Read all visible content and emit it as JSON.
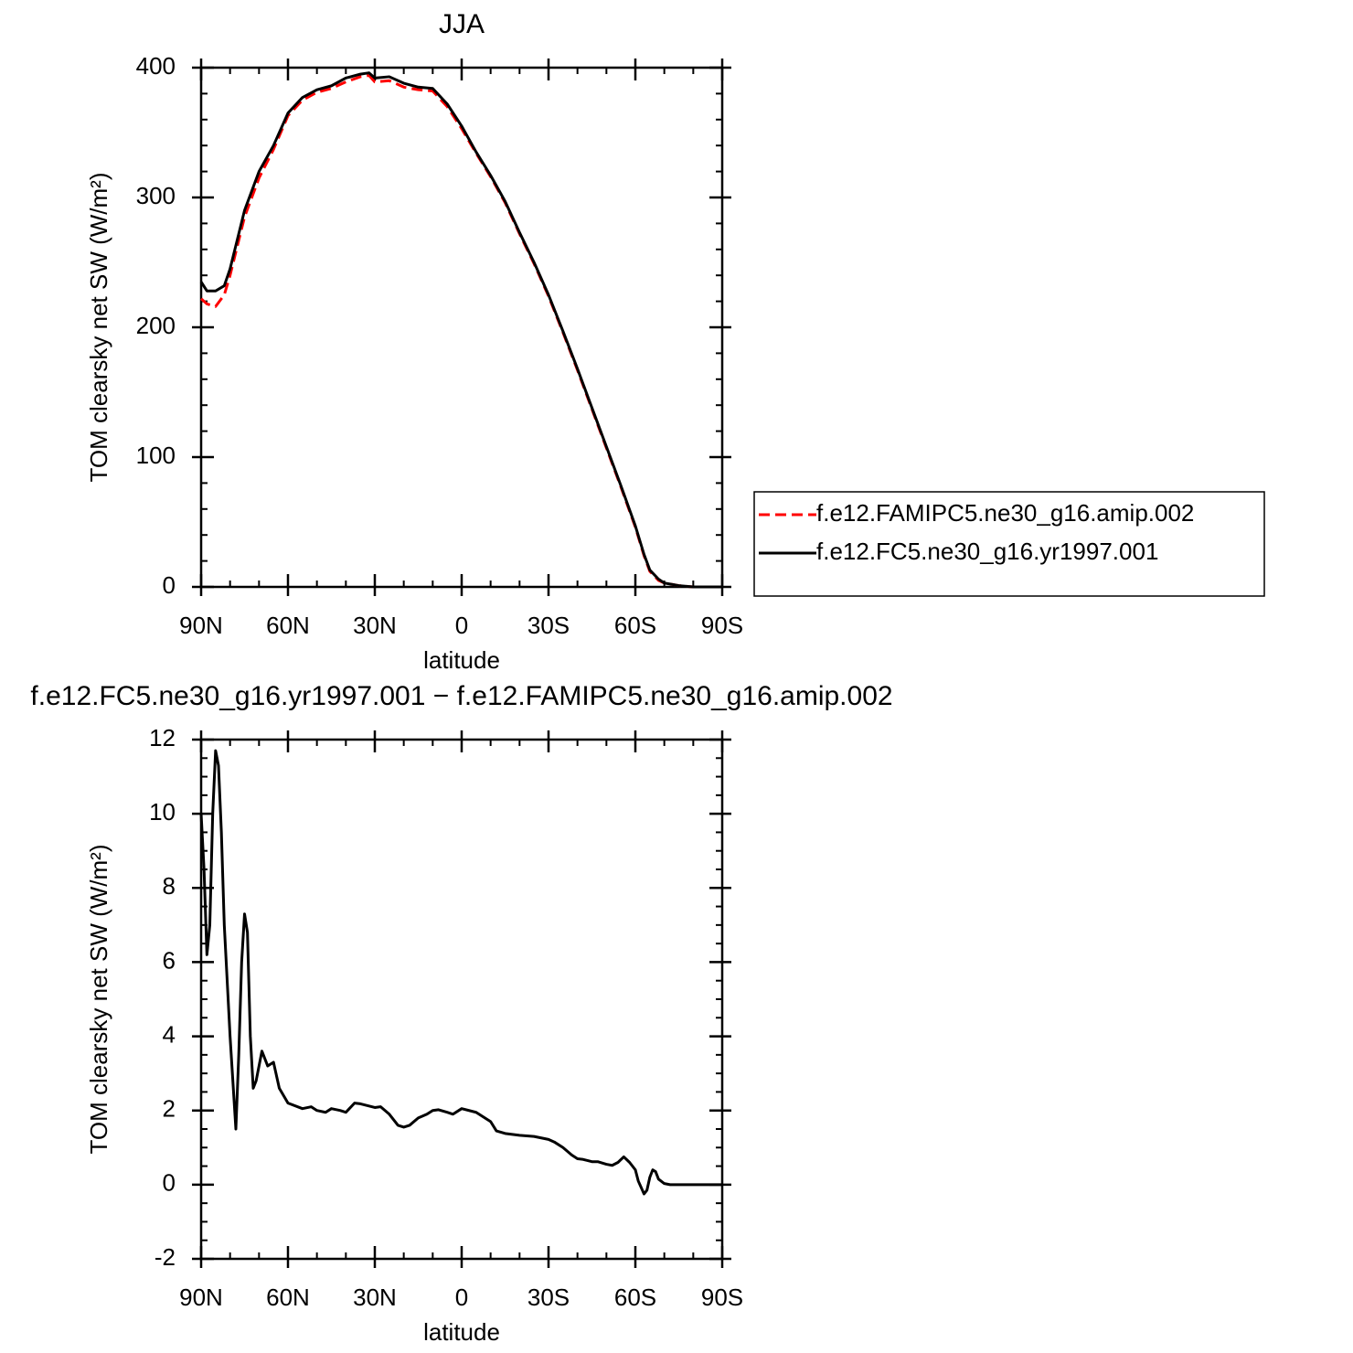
{
  "chart_data": [
    {
      "type": "line",
      "title": "JJA",
      "xlabel": "latitude",
      "ylabel": "TOM clearsky net SW (W/m²)",
      "x": [
        90,
        88,
        85,
        82,
        80,
        75,
        70,
        65,
        60,
        55,
        50,
        45,
        40,
        35,
        32,
        30,
        25,
        20,
        15,
        10,
        5,
        0,
        -5,
        -10,
        -15,
        -20,
        -25,
        -30,
        -35,
        -40,
        -45,
        -50,
        -55,
        -60,
        -63,
        -65,
        -68,
        -70,
        -75,
        -80,
        -85,
        -90
      ],
      "series": [
        {
          "name": "f.e12.FAMIPC5.ne30_g16.amip.002",
          "color": "#ff0000",
          "dash": true,
          "values": [
            222,
            218,
            216,
            225,
            240,
            285,
            315,
            337,
            363,
            375,
            381,
            384,
            389,
            393,
            394,
            389,
            390,
            385,
            383,
            382,
            370,
            353,
            334,
            316,
            296,
            272,
            249,
            224,
            196,
            167,
            137,
            107,
            77,
            46,
            24,
            12,
            5,
            3,
            1,
            0,
            0,
            0
          ]
        },
        {
          "name": "f.e12.FC5.ne30_g16.yr1997.001",
          "color": "#000000",
          "dash": false,
          "values": [
            235,
            228,
            228,
            232,
            245,
            290,
            320,
            340,
            365,
            377,
            383,
            386,
            392,
            395,
            396,
            392,
            393,
            388,
            385,
            384,
            372,
            355,
            335,
            317,
            297,
            273,
            250,
            225,
            197,
            168,
            138,
            108,
            78,
            47,
            25,
            13,
            6,
            3,
            1,
            0,
            0,
            0
          ]
        }
      ],
      "xlim": [
        90,
        -90
      ],
      "xticks": [
        {
          "value": 90,
          "label": "90N"
        },
        {
          "value": 60,
          "label": "60N"
        },
        {
          "value": 30,
          "label": "30N"
        },
        0,
        {
          "value": -30,
          "label": "30S"
        },
        {
          "value": -60,
          "label": "60S"
        },
        {
          "value": -90,
          "label": "90S"
        }
      ],
      "ylim": [
        0,
        400
      ],
      "yticks": [
        0,
        100,
        200,
        300,
        400
      ],
      "legend": "right"
    },
    {
      "type": "line",
      "title": "f.e12.FC5.ne30_g16.yr1997.001 − f.e12.FAMIPC5.ne30_g16.amip.002",
      "xlabel": "latitude",
      "ylabel": "TOM clearsky net SW (W/m²)",
      "x": [
        90,
        89,
        88,
        87,
        86,
        85,
        84,
        83,
        82,
        80,
        78,
        77,
        76,
        75,
        74,
        73,
        72,
        71,
        69,
        67,
        65,
        63,
        60,
        55,
        52,
        50,
        47,
        45,
        42,
        40,
        37,
        35,
        30,
        28,
        25,
        22,
        20,
        18,
        15,
        12,
        10,
        8,
        5,
        3,
        0,
        -5,
        -10,
        -12,
        -15,
        -20,
        -25,
        -30,
        -32,
        -35,
        -38,
        -40,
        -42,
        -45,
        -47,
        -50,
        -52,
        -54,
        -56,
        -58,
        -60,
        -61,
        -63,
        -64,
        -65,
        -66,
        -67,
        -68,
        -70,
        -72,
        -75,
        -90
      ],
      "series": [
        {
          "color": "#000000",
          "dash": false,
          "values": [
            10,
            8.5,
            6.2,
            7,
            10,
            11.7,
            11.3,
            9.5,
            7,
            4,
            1.5,
            3.5,
            6,
            7.3,
            6.8,
            4,
            2.6,
            2.8,
            3.6,
            3.2,
            3.3,
            2.6,
            2.2,
            2.05,
            2.1,
            2.0,
            1.95,
            2.05,
            2.0,
            1.95,
            2.2,
            2.18,
            2.08,
            2.1,
            1.9,
            1.6,
            1.55,
            1.6,
            1.8,
            1.9,
            2.0,
            2.02,
            1.95,
            1.9,
            2.05,
            1.95,
            1.7,
            1.45,
            1.38,
            1.33,
            1.3,
            1.22,
            1.15,
            1.0,
            0.8,
            0.7,
            0.68,
            0.62,
            0.62,
            0.55,
            0.52,
            0.6,
            0.75,
            0.6,
            0.4,
            0.1,
            -0.25,
            -0.15,
            0.2,
            0.4,
            0.35,
            0.15,
            0.03,
            0,
            0,
            0
          ]
        }
      ],
      "xlim": [
        90,
        -90
      ],
      "xticks": [
        {
          "value": 90,
          "label": "90N"
        },
        {
          "value": 60,
          "label": "60N"
        },
        {
          "value": 30,
          "label": "30N"
        },
        0,
        {
          "value": -30,
          "label": "30S"
        },
        {
          "value": -60,
          "label": "60S"
        },
        {
          "value": -90,
          "label": "90S"
        }
      ],
      "ylim": [
        -2,
        12
      ],
      "yticks": [
        -2,
        0,
        2,
        4,
        6,
        8,
        10,
        12
      ]
    }
  ]
}
